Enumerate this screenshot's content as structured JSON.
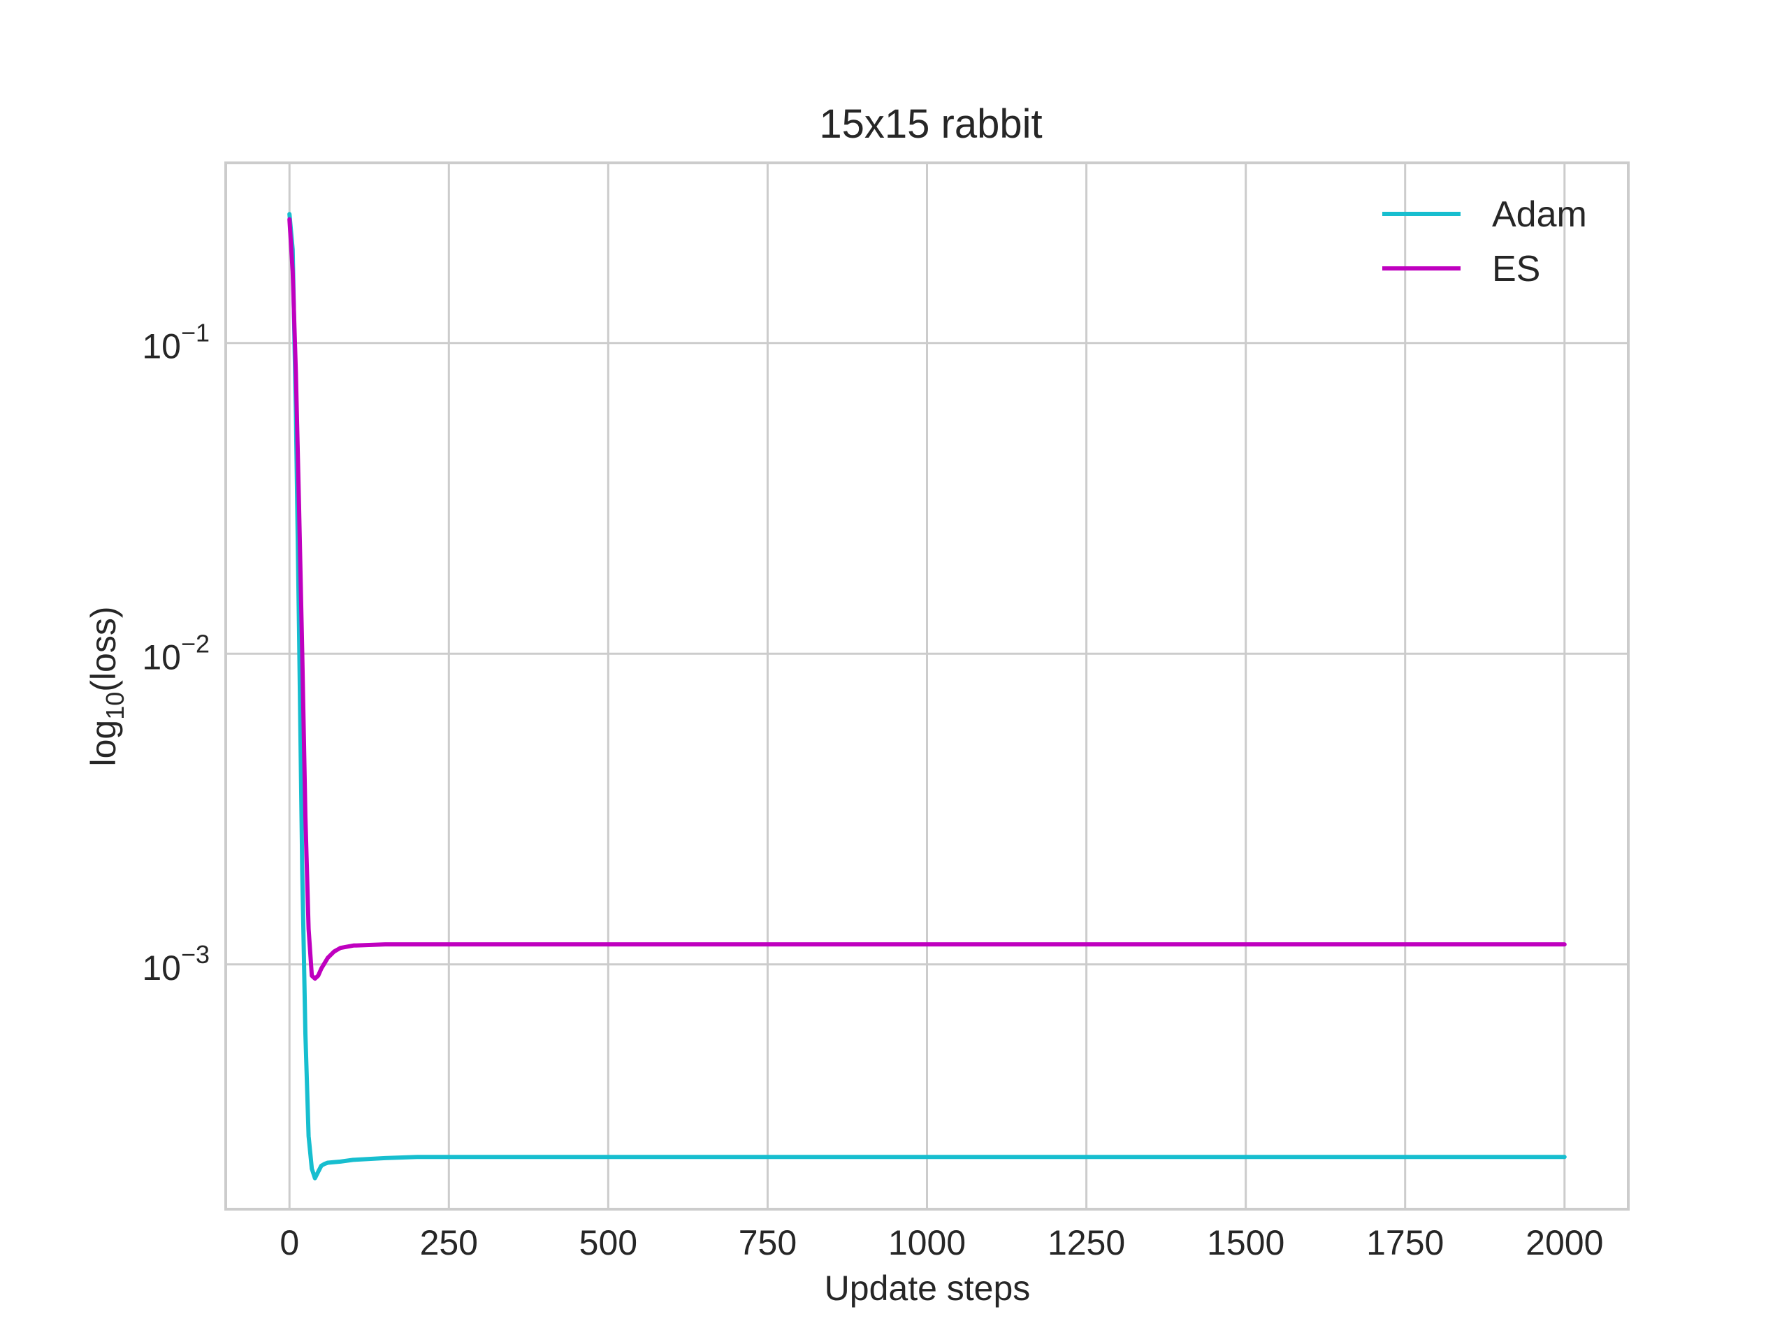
{
  "chart_data": {
    "type": "line",
    "title": "15x15 rabbit",
    "xlabel": "Update steps",
    "ylabel_base": "log",
    "ylabel_sub": "10",
    "ylabel_rest": "(loss)",
    "xlim": [
      -100,
      2100
    ],
    "ylim": [
      0.000163,
      0.38
    ],
    "yscale": "log",
    "grid": true,
    "legend_position": "top-right",
    "x_ticks": [
      0,
      250,
      500,
      750,
      1000,
      1250,
      1500,
      1750,
      2000
    ],
    "x_tick_labels": [
      "0",
      "250",
      "500",
      "750",
      "1000",
      "1250",
      "1500",
      "1750",
      "2000"
    ],
    "y_ticks": [
      0.1,
      0.01,
      0.001
    ],
    "y_tick_labels": [
      {
        "base": "10",
        "exp": "−1"
      },
      {
        "base": "10",
        "exp": "−2"
      },
      {
        "base": "10",
        "exp": "−3"
      }
    ],
    "series": [
      {
        "name": "Adam",
        "color": "#17becf",
        "points": [
          [
            0,
            0.26
          ],
          [
            5,
            0.2
          ],
          [
            10,
            0.06
          ],
          [
            15,
            0.012
          ],
          [
            20,
            0.002
          ],
          [
            25,
            0.0006
          ],
          [
            30,
            0.00028
          ],
          [
            35,
            0.00022
          ],
          [
            40,
            0.000205
          ],
          [
            45,
            0.000215
          ],
          [
            50,
            0.000225
          ],
          [
            55,
            0.000228
          ],
          [
            60,
            0.00023
          ],
          [
            80,
            0.000232
          ],
          [
            100,
            0.000235
          ],
          [
            150,
            0.000238
          ],
          [
            200,
            0.00024
          ],
          [
            250,
            0.00024
          ],
          [
            500,
            0.00024
          ],
          [
            1000,
            0.00024
          ],
          [
            1500,
            0.00024
          ],
          [
            2000,
            0.00024
          ]
        ]
      },
      {
        "name": "ES",
        "color": "#bf00bf",
        "points": [
          [
            0,
            0.25
          ],
          [
            5,
            0.17
          ],
          [
            10,
            0.08
          ],
          [
            15,
            0.03
          ],
          [
            20,
            0.01
          ],
          [
            25,
            0.003
          ],
          [
            30,
            0.0013
          ],
          [
            35,
            0.00092
          ],
          [
            40,
            0.0009
          ],
          [
            45,
            0.00092
          ],
          [
            50,
            0.00097
          ],
          [
            60,
            0.00105
          ],
          [
            70,
            0.0011
          ],
          [
            80,
            0.00113
          ],
          [
            100,
            0.00115
          ],
          [
            150,
            0.00116
          ],
          [
            200,
            0.00116
          ],
          [
            500,
            0.00116
          ],
          [
            1000,
            0.00116
          ],
          [
            1500,
            0.00116
          ],
          [
            2000,
            0.00116
          ]
        ]
      }
    ]
  }
}
